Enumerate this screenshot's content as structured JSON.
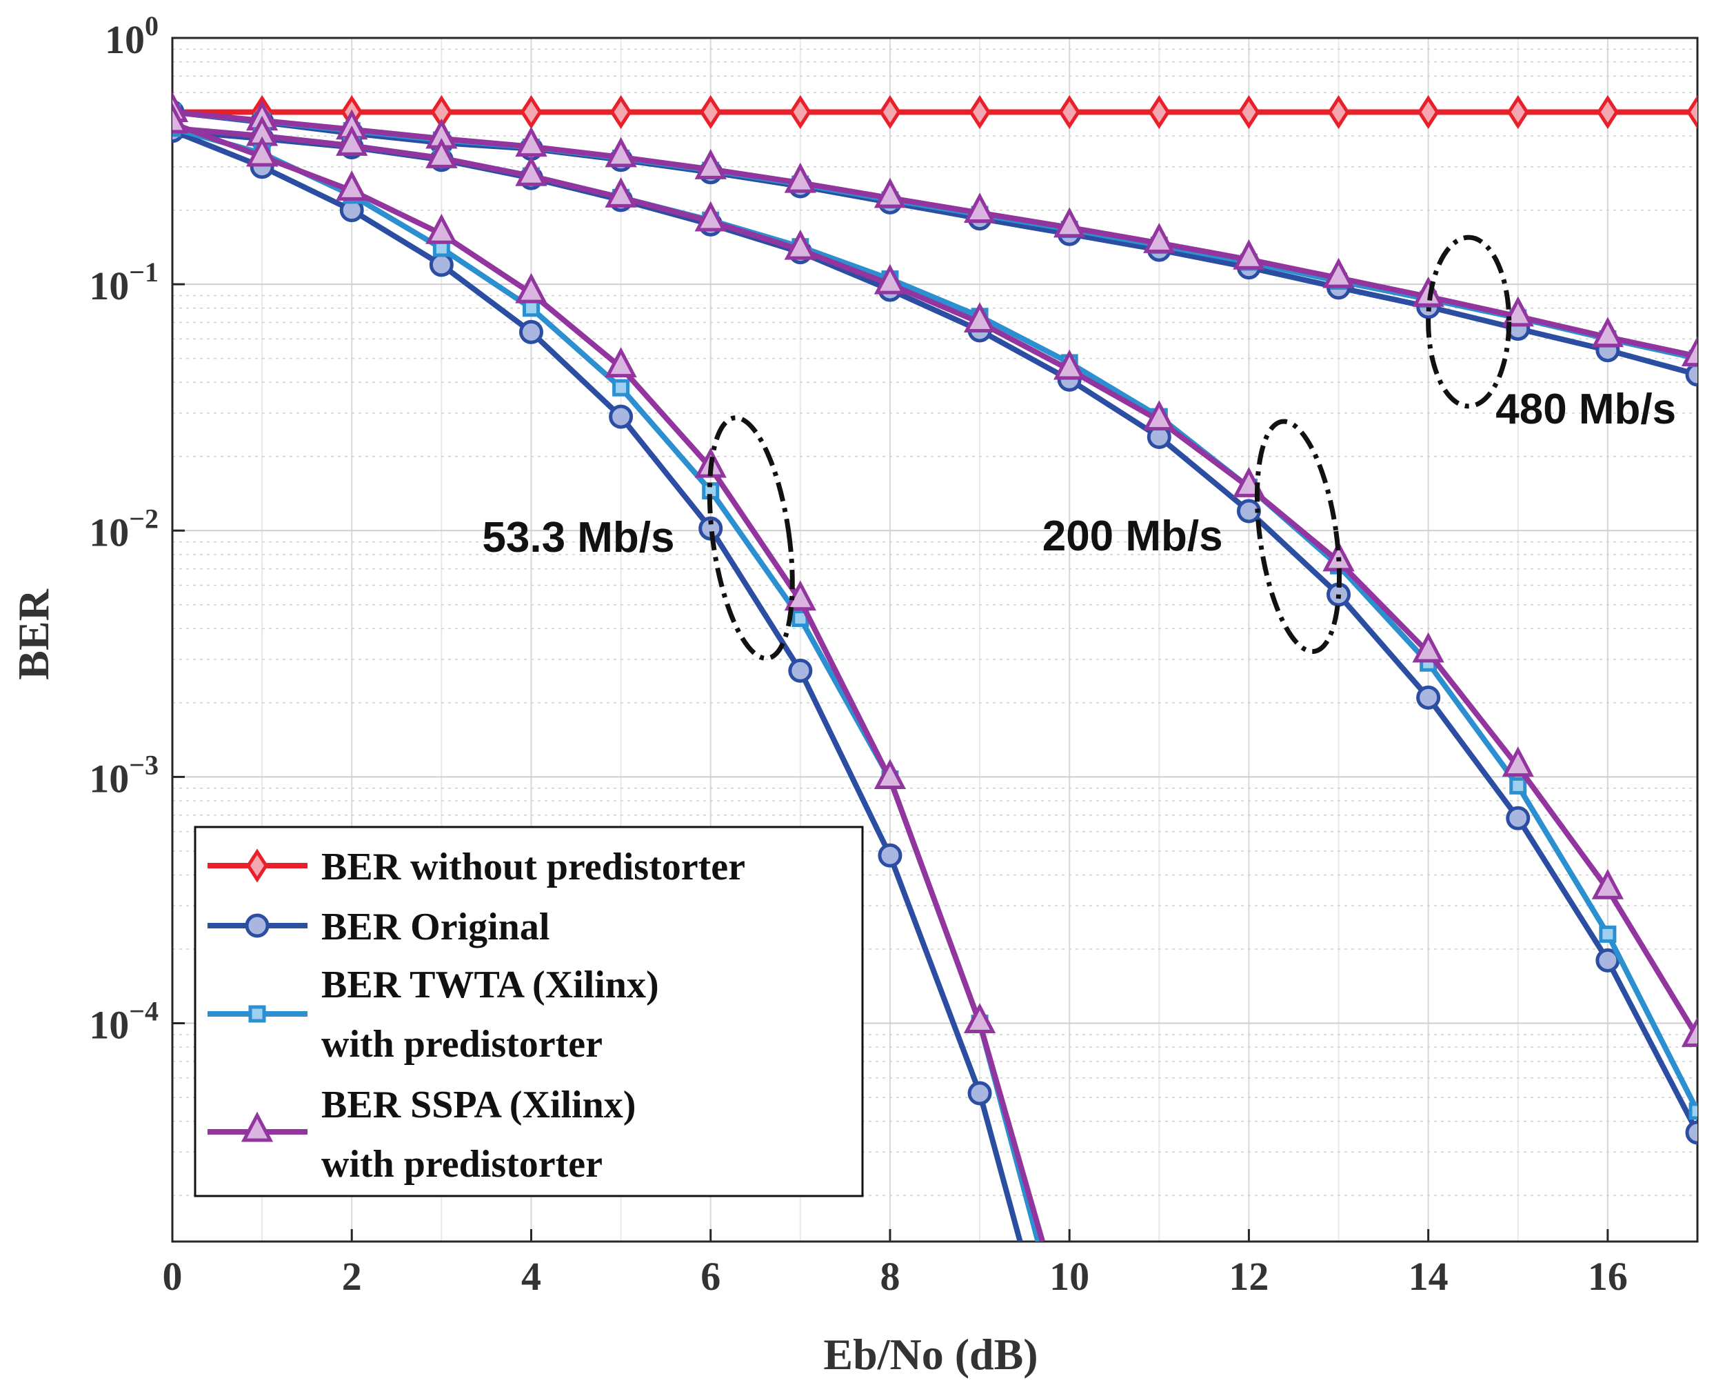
{
  "chart_data": {
    "type": "line",
    "title": "",
    "xlabel": "Eb/No (dB)",
    "ylabel": "BER",
    "yscale": "log",
    "xlim": [
      0,
      17
    ],
    "ylim": [
      1.3e-05,
      1
    ],
    "grid": true,
    "x_ticks": [
      0,
      2,
      4,
      6,
      8,
      10,
      12,
      14,
      16
    ],
    "y_ticks": [
      {
        "value": 1,
        "base": "10",
        "exp": "0"
      },
      {
        "value": 0.1,
        "base": "10",
        "exp": "−1"
      },
      {
        "value": 0.01,
        "base": "10",
        "exp": "−2"
      },
      {
        "value": 0.001,
        "base": "10",
        "exp": "−3"
      },
      {
        "value": 0.0001,
        "base": "10",
        "exp": "−4"
      }
    ],
    "legend_position": "bottom-left",
    "legend": [
      {
        "lines": [
          "BER without predistorter"
        ],
        "color": "#e8202a",
        "marker": "diamond"
      },
      {
        "lines": [
          "BER Original"
        ],
        "color": "#2b4ea2",
        "marker": "circle"
      },
      {
        "lines": [
          "BER TWTA (Xilinx)",
          "with predistorter"
        ],
        "color": "#2b8fd0",
        "marker": "square"
      },
      {
        "lines": [
          "BER SSPA (Xilinx)",
          "with predistorter"
        ],
        "color": "#93359e",
        "marker": "triangle"
      }
    ],
    "series": [
      {
        "name": "BER without predistorter",
        "color": "#e8202a",
        "marker": "diamond",
        "x": [
          0,
          1,
          2,
          3,
          4,
          5,
          6,
          7,
          8,
          9,
          10,
          11,
          12,
          13,
          14,
          15,
          16,
          17
        ],
        "y": [
          0.5,
          0.5,
          0.5,
          0.5,
          0.5,
          0.5,
          0.5,
          0.5,
          0.5,
          0.5,
          0.5,
          0.5,
          0.5,
          0.5,
          0.5,
          0.5,
          0.5,
          0.5
        ]
      },
      {
        "name": "BER Original (480 Mb/s)",
        "color": "#2b4ea2",
        "marker": "circle",
        "x": [
          0,
          1,
          2,
          3,
          4,
          5,
          6,
          7,
          8,
          9,
          10,
          11,
          12,
          13,
          14,
          15,
          16,
          17
        ],
        "y": [
          0.5,
          0.455,
          0.41,
          0.375,
          0.355,
          0.32,
          0.285,
          0.25,
          0.215,
          0.185,
          0.16,
          0.138,
          0.117,
          0.097,
          0.081,
          0.066,
          0.054,
          0.043
        ]
      },
      {
        "name": "BER TWTA (Xilinx) with predistorter (480 Mb/s)",
        "color": "#2b8fd0",
        "marker": "square",
        "x": [
          0,
          1,
          2,
          3,
          4,
          5,
          6,
          7,
          8,
          9,
          10,
          11,
          12,
          13,
          14,
          15,
          16,
          17
        ],
        "y": [
          0.5,
          0.46,
          0.42,
          0.385,
          0.36,
          0.325,
          0.29,
          0.255,
          0.22,
          0.192,
          0.167,
          0.144,
          0.123,
          0.103,
          0.087,
          0.073,
          0.06,
          0.05
        ]
      },
      {
        "name": "BER SSPA (Xilinx) with predistorter (480 Mb/s)",
        "color": "#93359e",
        "marker": "triangle",
        "x": [
          0,
          1,
          2,
          3,
          4,
          5,
          6,
          7,
          8,
          9,
          10,
          11,
          12,
          13,
          14,
          15,
          16,
          17
        ],
        "y": [
          0.5,
          0.462,
          0.425,
          0.39,
          0.362,
          0.328,
          0.293,
          0.258,
          0.224,
          0.195,
          0.17,
          0.147,
          0.126,
          0.106,
          0.089,
          0.074,
          0.061,
          0.051
        ]
      },
      {
        "name": "BER Original (200 Mb/s)",
        "color": "#2b4ea2",
        "marker": "circle",
        "x": [
          0,
          1,
          2,
          3,
          4,
          5,
          6,
          7,
          8,
          9,
          10,
          11,
          12,
          13,
          14,
          15,
          16,
          17
        ],
        "y": [
          0.42,
          0.39,
          0.36,
          0.32,
          0.27,
          0.22,
          0.175,
          0.135,
          0.095,
          0.065,
          0.041,
          0.024,
          0.012,
          0.0055,
          0.0021,
          0.00068,
          0.00018,
          3.6e-05
        ]
      },
      {
        "name": "BER TWTA (Xilinx) with predistorter (200 Mb/s)",
        "color": "#2b8fd0",
        "marker": "square",
        "x": [
          0,
          1,
          2,
          3,
          4,
          5,
          6,
          7,
          8,
          9,
          10,
          11,
          12,
          13,
          14,
          15,
          16,
          17
        ],
        "y": [
          0.43,
          0.4,
          0.365,
          0.325,
          0.275,
          0.225,
          0.182,
          0.142,
          0.105,
          0.074,
          0.048,
          0.029,
          0.015,
          0.0072,
          0.0029,
          0.00092,
          0.00023,
          4.4e-05
        ]
      },
      {
        "name": "BER SSPA (Xilinx) with predistorter (200 Mb/s)",
        "color": "#93359e",
        "marker": "triangle",
        "x": [
          0,
          1,
          2,
          3,
          4,
          5,
          6,
          7,
          8,
          9,
          10,
          11,
          12,
          13,
          14,
          15,
          16,
          17
        ],
        "y": [
          0.43,
          0.4,
          0.365,
          0.325,
          0.275,
          0.225,
          0.18,
          0.138,
          0.1,
          0.07,
          0.045,
          0.028,
          0.015,
          0.0075,
          0.0032,
          0.0011,
          0.00035,
          8.8e-05
        ]
      },
      {
        "name": "BER Original (53.3 Mb/s)",
        "color": "#2b4ea2",
        "marker": "circle",
        "x": [
          0,
          1,
          2,
          3,
          4,
          5,
          6,
          7,
          8,
          9,
          9.45
        ],
        "y": [
          0.42,
          0.3,
          0.2,
          0.12,
          0.064,
          0.029,
          0.0102,
          0.0027,
          0.00048,
          5.2e-05,
          1.3e-05
        ]
      },
      {
        "name": "BER TWTA (Xilinx) with predistorter (53.3 Mb/s)",
        "color": "#2b8fd0",
        "marker": "square",
        "x": [
          0,
          1,
          2,
          3,
          4,
          5,
          6,
          7,
          8,
          9,
          9.65
        ],
        "y": [
          0.43,
          0.34,
          0.23,
          0.14,
          0.08,
          0.038,
          0.0145,
          0.0044,
          0.00098,
          0.0001,
          1.3e-05
        ]
      },
      {
        "name": "BER SSPA (Xilinx) with predistorter (53.3 Mb/s)",
        "color": "#93359e",
        "marker": "triangle",
        "x": [
          0,
          1,
          2,
          3,
          4,
          5,
          6,
          7,
          8,
          9,
          9.7
        ],
        "y": [
          0.45,
          0.33,
          0.24,
          0.16,
          0.092,
          0.046,
          0.018,
          0.0052,
          0.00098,
          0.0001,
          1.3e-05
        ]
      }
    ],
    "annotations": [
      {
        "text": "480 Mb/s",
        "ellipse_center": [
          14.45,
          0.038
        ],
        "ellipse_span_x": 0.9,
        "ellipse_y": [
          0.155,
          0.032
        ]
      },
      {
        "text": "53.3 Mb/s",
        "ellipse_center": [
          6.45,
          0.0045
        ],
        "ellipse_span_x": 0.85,
        "ellipse_y": [
          0.029,
          0.003
        ]
      },
      {
        "text": "200 Mb/s",
        "ellipse_center": [
          12.55,
          0.0045
        ],
        "ellipse_span_x": 0.85,
        "ellipse_y": [
          0.028,
          0.0032
        ]
      }
    ]
  }
}
